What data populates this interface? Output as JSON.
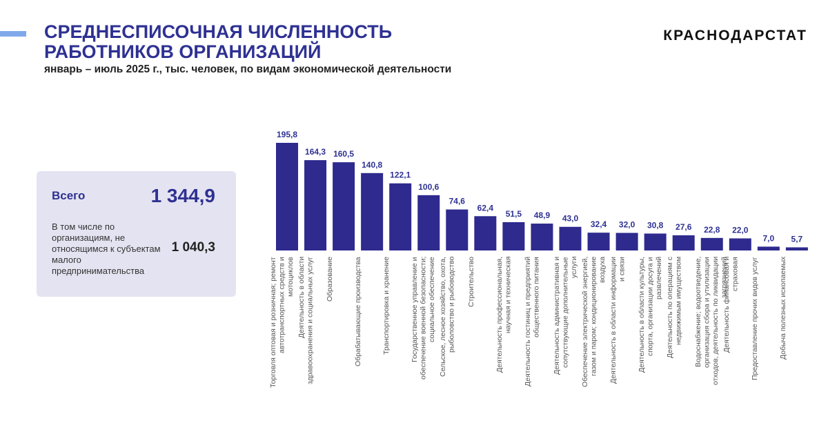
{
  "header": {
    "brand": "КРАСНОДАРСТАТ"
  },
  "summary": {
    "total_label": "Всего",
    "total_value": "1 344,9",
    "part_label": "В том числе по организациям, не относящимся к субъектам малого предпринимательства",
    "part_value": "1 040,3"
  },
  "chart_data": {
    "type": "bar",
    "title": "СРЕДНЕСПИСОЧНАЯ ЧИСЛЕННОСТЬ\nРАБОТНИКОВ ОРГАНИЗАЦИЙ",
    "subtitle": "январь – июль 2025 г., тыс. человек, по видам экономической деятельности",
    "categories": [
      "Торговля оптовая и розничная; ремонт автотранспортных средств и мотоциклов",
      "Деятельность в области здравоохранения и социальных услуг",
      "Образование",
      "Обрабатывающие производства",
      "Транспортировка и хранение",
      "Государственное управление и обеспечение военной безопасности; социальное обеспечение",
      "Сельское, лесное хозяйство, охота, рыболовство и рыбоводство",
      "Строительство",
      "Деятельность профессиональная, научная и техническая",
      "Деятельность гостиниц и предприятий общественного питания",
      "Деятельность административная и сопутствующие дополнительные услуги",
      "Обеспечение электрической энергией, газом и паром; кондиционирование воздуха",
      "Деятельность в области информации и связи",
      "Деятельность в области культуры, спорта, организации досуга и развлечений",
      "Деятельность по операциям с недвижимым имуществом",
      "Водоснабжение; водоотведение, организация сбора и утилизации отходов, деятельность по ликвидации загрязнений",
      "Деятельность финансовая и страховая",
      "Предоставление прочих видов услуг",
      "Добыча полезных ископаемых"
    ],
    "values": [
      195.8,
      164.3,
      160.5,
      140.8,
      122.1,
      100.6,
      74.6,
      62.4,
      51.5,
      48.9,
      43.0,
      32.4,
      32.0,
      30.8,
      27.6,
      22.8,
      22.0,
      7.0,
      5.7
    ],
    "value_labels": [
      "195,8",
      "164,3",
      "160,5",
      "140,8",
      "122,1",
      "100,6",
      "74,6",
      "62,4",
      "51,5",
      "48,9",
      "43,0",
      "32,4",
      "32,0",
      "30,8",
      "27,6",
      "22,8",
      "22,0",
      "7,0",
      "5,7"
    ],
    "color": "#2e2a8e"
  }
}
